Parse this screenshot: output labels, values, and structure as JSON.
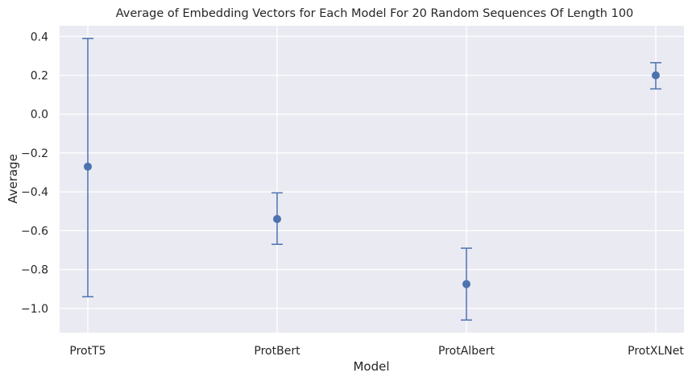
{
  "chart_data": {
    "type": "scatter",
    "title": "Average of Embedding Vectors for Each Model For 20 Random Sequences Of Length 100",
    "xlabel": "Model",
    "ylabel": "Average",
    "categories": [
      "ProtT5",
      "ProtBert",
      "ProtAlbert",
      "ProtXLNet"
    ],
    "series": [
      {
        "values": [
          -0.27,
          -0.54,
          -0.875,
          0.2
        ],
        "error_lower": [
          -0.94,
          -0.67,
          -1.06,
          0.13
        ],
        "error_upper": [
          0.39,
          -0.405,
          -0.69,
          0.265
        ]
      }
    ],
    "yticks": [
      "0.4",
      "0.2",
      "0.0",
      "−0.2",
      "−0.4",
      "−0.6",
      "−0.8",
      "−1.0"
    ],
    "ytick_values": [
      0.4,
      0.2,
      0.0,
      -0.2,
      -0.4,
      -0.6,
      -0.8,
      -1.0
    ],
    "ylim": [
      -1.125,
      0.455
    ],
    "grid": true,
    "colors": {
      "plot_background": "#eaeaf2",
      "grid": "#ffffff",
      "series": "#4c72b0"
    }
  }
}
